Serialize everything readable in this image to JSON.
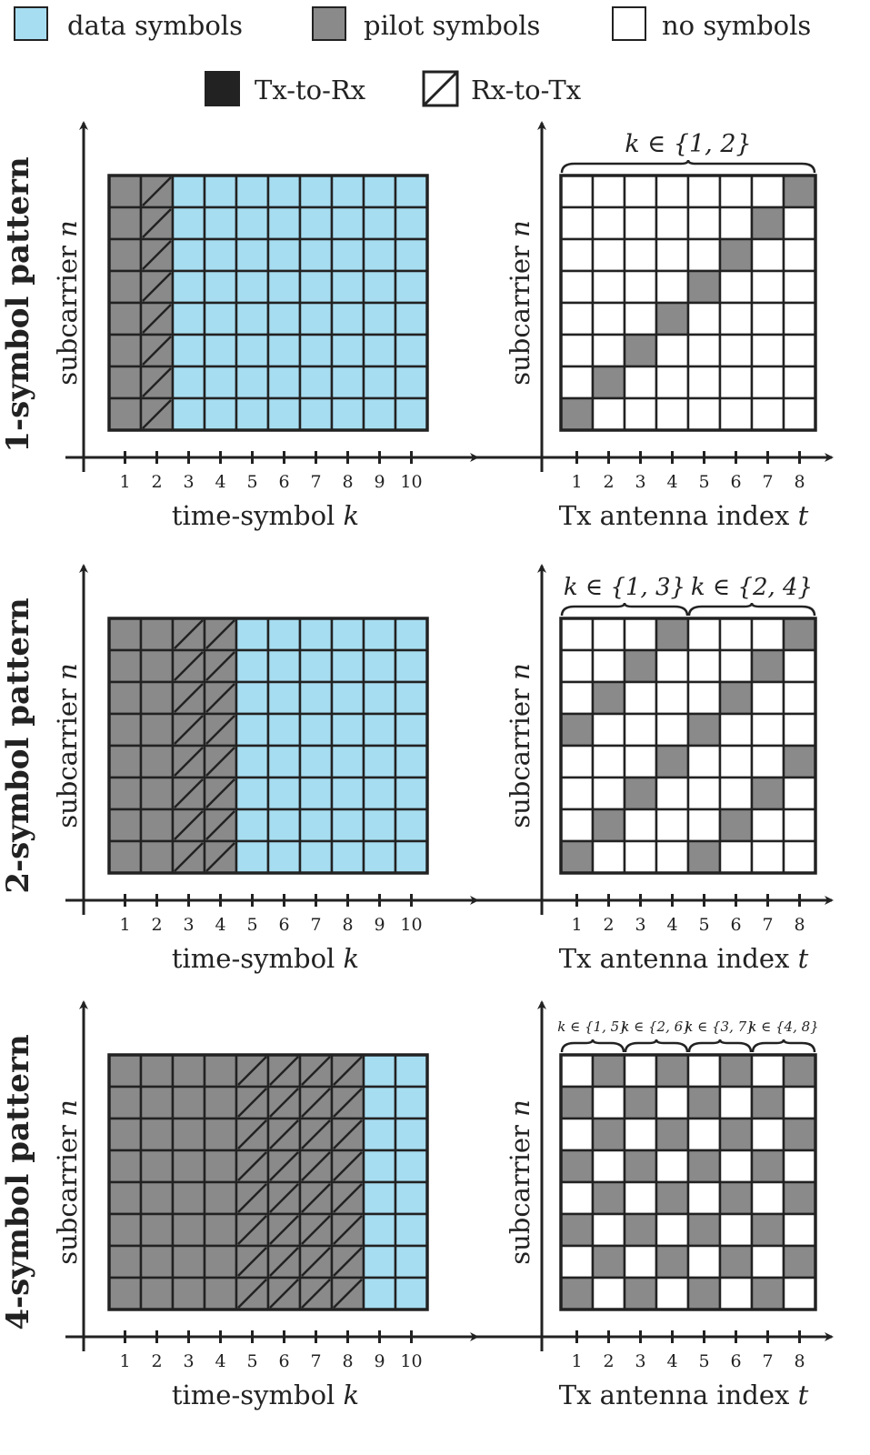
{
  "legend": {
    "data_symbols": "data symbols",
    "pilot_symbols": "pilot symbols",
    "no_symbols": "no symbols",
    "tx_to_rx": "Tx-to-Rx",
    "rx_to_tx": "Rx-to-Tx"
  },
  "colors": {
    "data": "#a7ddf1",
    "pilot": "#8a8a8a",
    "empty": "#ffffff",
    "line": "#222222"
  },
  "axes": {
    "subcarrier_label": "subcarrier n",
    "time_label": "time-symbol k",
    "antenna_label": "Tx antenna index t",
    "time_ticks": [
      "1",
      "2",
      "3",
      "4",
      "5",
      "6",
      "7",
      "8",
      "9",
      "10"
    ],
    "antenna_ticks": [
      "1",
      "2",
      "3",
      "4",
      "5",
      "6",
      "7",
      "8"
    ]
  },
  "patterns": [
    {
      "title": "1-symbol pattern",
      "pilot_columns": [
        1,
        2
      ],
      "rx_to_tx_columns": [
        2
      ],
      "brace_labels": [
        "k ∈ {1, 2}"
      ],
      "antenna_grid": [
        "00000001",
        "00000010",
        "00000100",
        "00001000",
        "00010000",
        "00100000",
        "01000000",
        "10000000"
      ]
    },
    {
      "title": "2-symbol pattern",
      "pilot_columns": [
        1,
        2,
        3,
        4
      ],
      "rx_to_tx_columns": [
        3,
        4
      ],
      "brace_labels": [
        "k ∈ {1, 3}",
        "k ∈ {2, 4}"
      ],
      "antenna_grid": [
        "00010001",
        "00100010",
        "01000100",
        "10001000",
        "00010001",
        "00100010",
        "01000100",
        "10001000"
      ]
    },
    {
      "title": "4-symbol pattern",
      "pilot_columns": [
        1,
        2,
        3,
        4,
        5,
        6,
        7,
        8
      ],
      "rx_to_tx_columns": [
        5,
        6,
        7,
        8
      ],
      "brace_labels": [
        "k ∈ {1, 5}",
        "k ∈ {2, 6}",
        "k ∈ {3, 7}",
        "k ∈ {4, 8}"
      ],
      "antenna_grid": [
        "01010101",
        "10101010",
        "01010101",
        "10101010",
        "01010101",
        "10101010",
        "01010101",
        "10101010"
      ]
    }
  ]
}
